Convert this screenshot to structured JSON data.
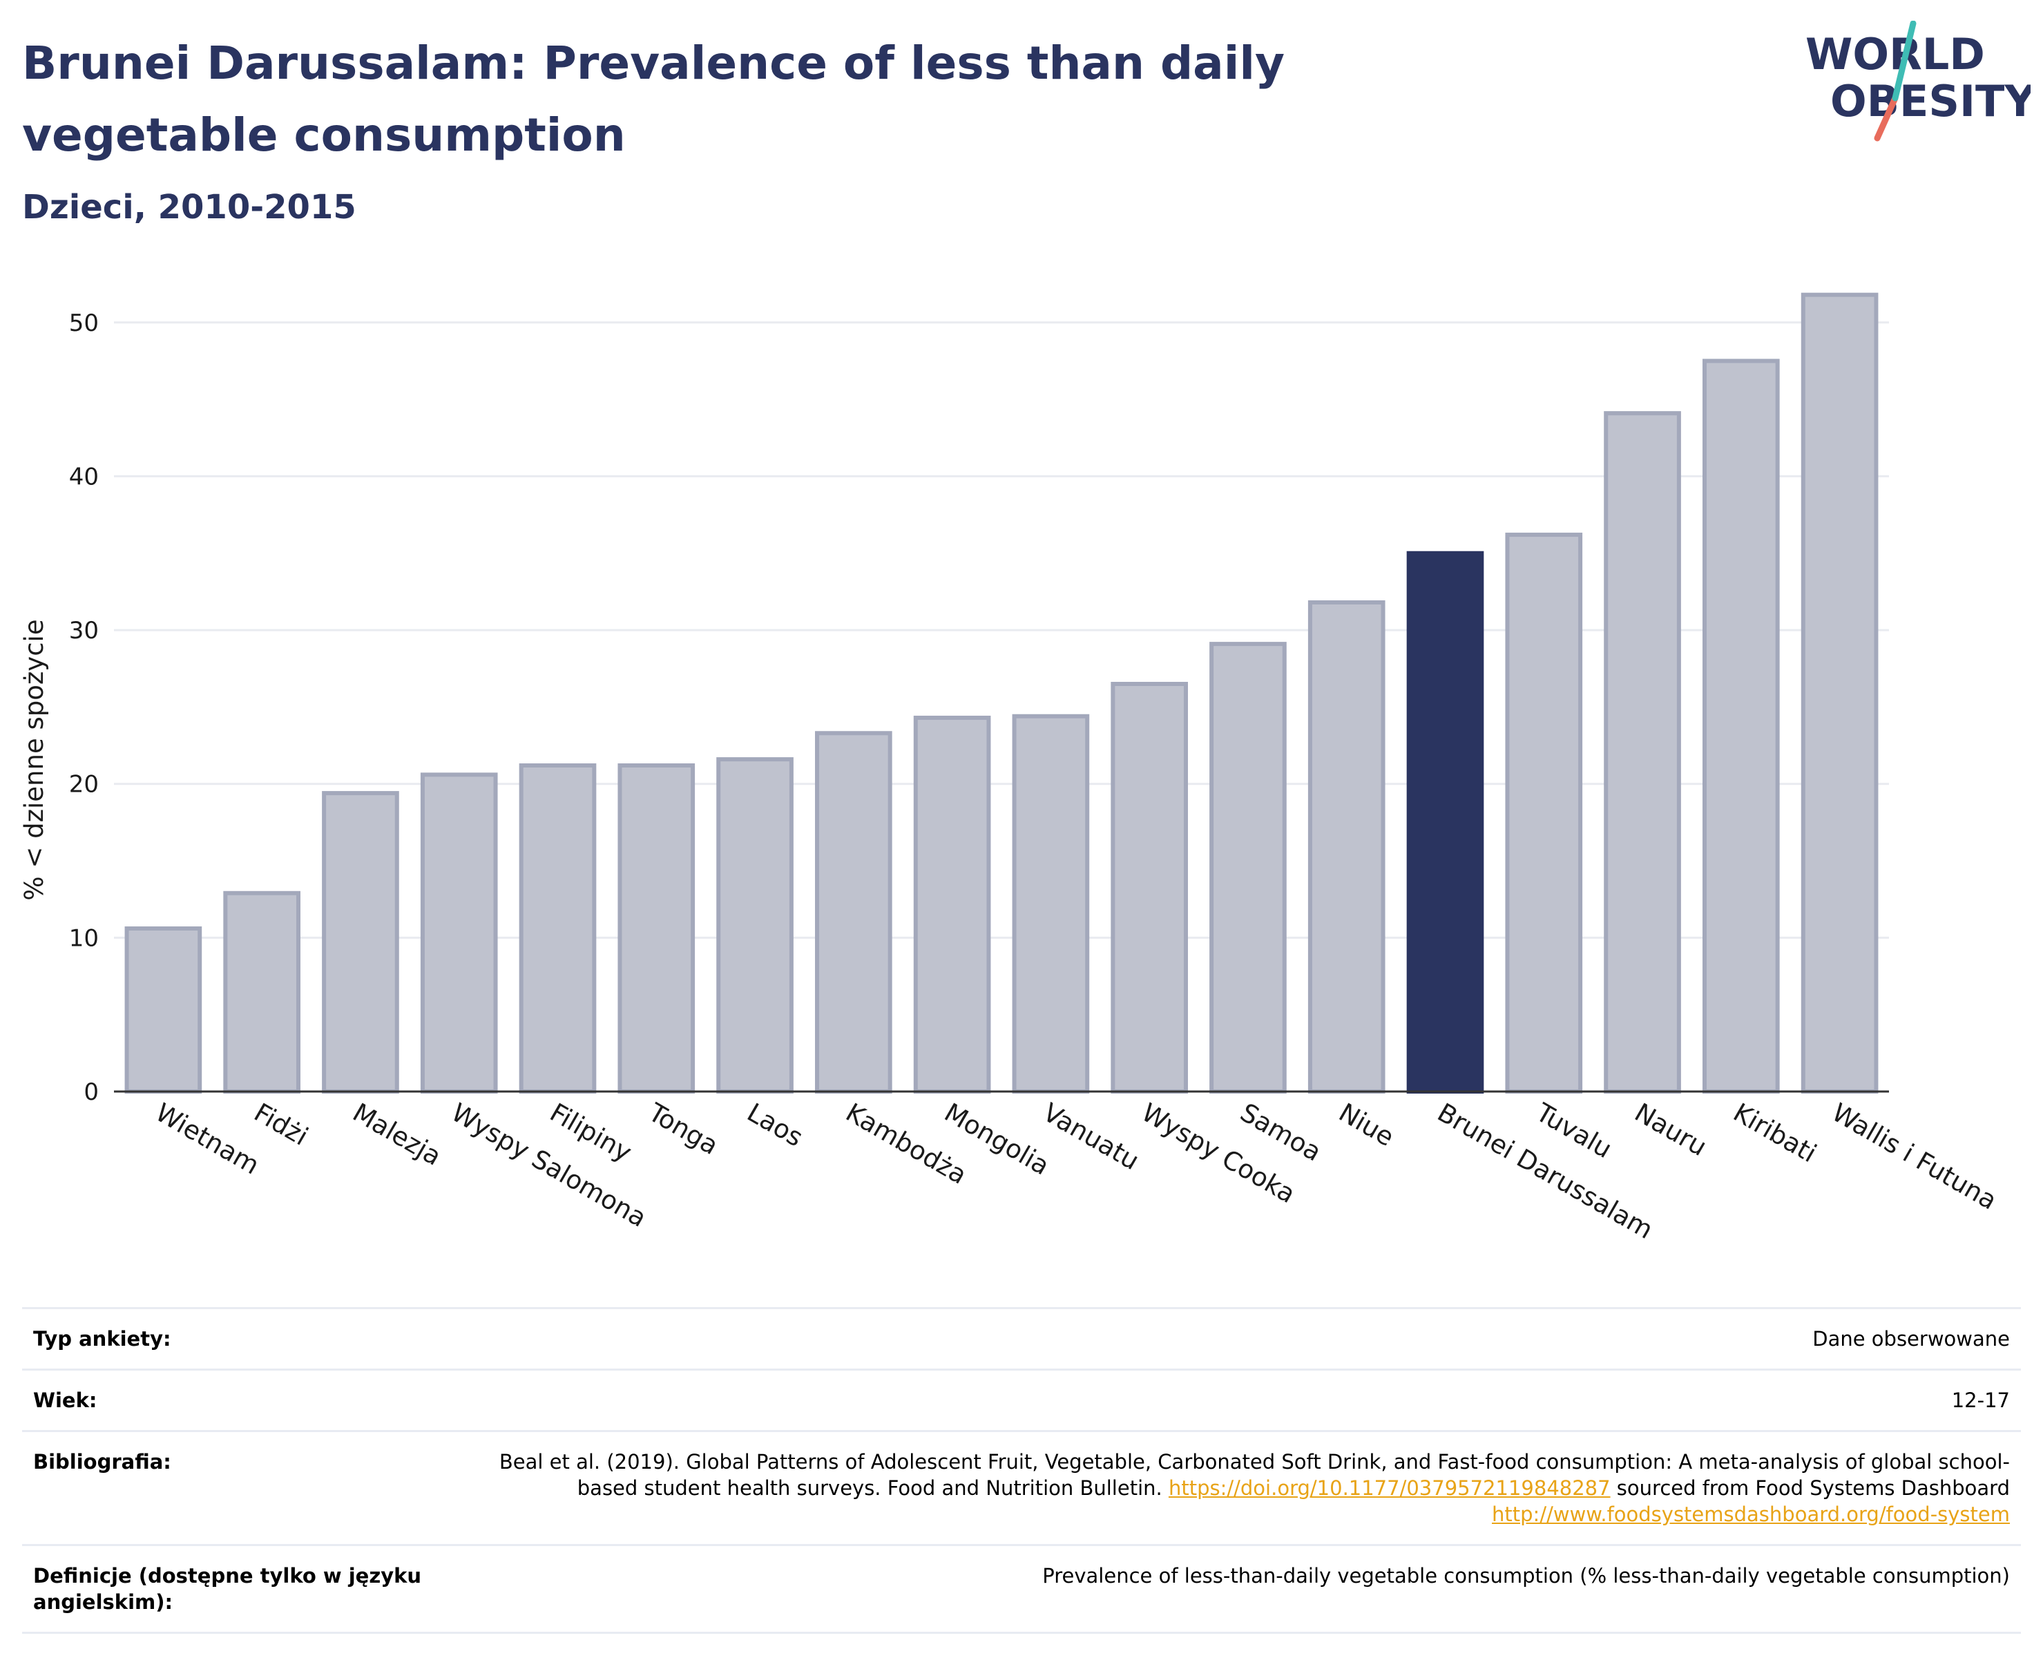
{
  "title": "Brunei Darussalam: Prevalence of less than daily vegetable consumption",
  "subtitle": "Dzieci, 2010-2015",
  "logo": {
    "line1": "WORLD",
    "line2": "OBESITY"
  },
  "colors": {
    "title": "#2a3460",
    "highlight_bar": "#2a3460",
    "bar": "#bfc2ce",
    "bar_border": "#a3a8bb",
    "link": "#e8a317",
    "logo_teal": "#3fbcb4",
    "logo_coral": "#e86c5c"
  },
  "chart_data": {
    "type": "bar",
    "ylabel": "% < dzienne spożycie",
    "xlabel": "",
    "ylim": [
      0,
      53
    ],
    "yticks": [
      0,
      10,
      20,
      30,
      40,
      50
    ],
    "grid": true,
    "highlight": "Brunei Darussalam",
    "categories": [
      "Wietnam",
      "Fidżi",
      "Malezja",
      "Wyspy Salomona",
      "Filipiny",
      "Tonga",
      "Laos",
      "Kambodża",
      "Mongolia",
      "Vanuatu",
      "Wyspy Cooka",
      "Samoa",
      "Niue",
      "Brunei Darussalam",
      "Tuvalu",
      "Nauru",
      "Kiribati",
      "Wallis i Futuna"
    ],
    "values": [
      10.6,
      12.9,
      19.4,
      20.6,
      21.2,
      21.2,
      21.6,
      23.3,
      24.3,
      24.4,
      26.5,
      29.1,
      31.8,
      35.0,
      36.2,
      44.1,
      47.5,
      51.8
    ]
  },
  "info": {
    "survey_type_label": "Typ ankiety:",
    "survey_type_value": "Dane obserwowane",
    "age_label": "Wiek:",
    "age_value": "12-17",
    "bibliography_label": "Bibliografia:",
    "bibliography_text_1": "Beal et al. (2019). Global Patterns of Adolescent Fruit, Vegetable, Carbonated Soft Drink, and Fast-food consumption: A meta-analysis of global school-based student health surveys. Food and Nutrition Bulletin.",
    "bibliography_link_1": "https://doi.org/10.1177/0379572119848287",
    "bibliography_text_2": "sourced from Food Systems Dashboard",
    "bibliography_link_2": "http://www.foodsystemsdashboard.org/food-system",
    "definitions_label": "Definicje (dostępne tylko w języku angielskim):",
    "definitions_value": "Prevalence of less-than-daily vegetable consumption (% less-than-daily vegetable consumption)"
  }
}
